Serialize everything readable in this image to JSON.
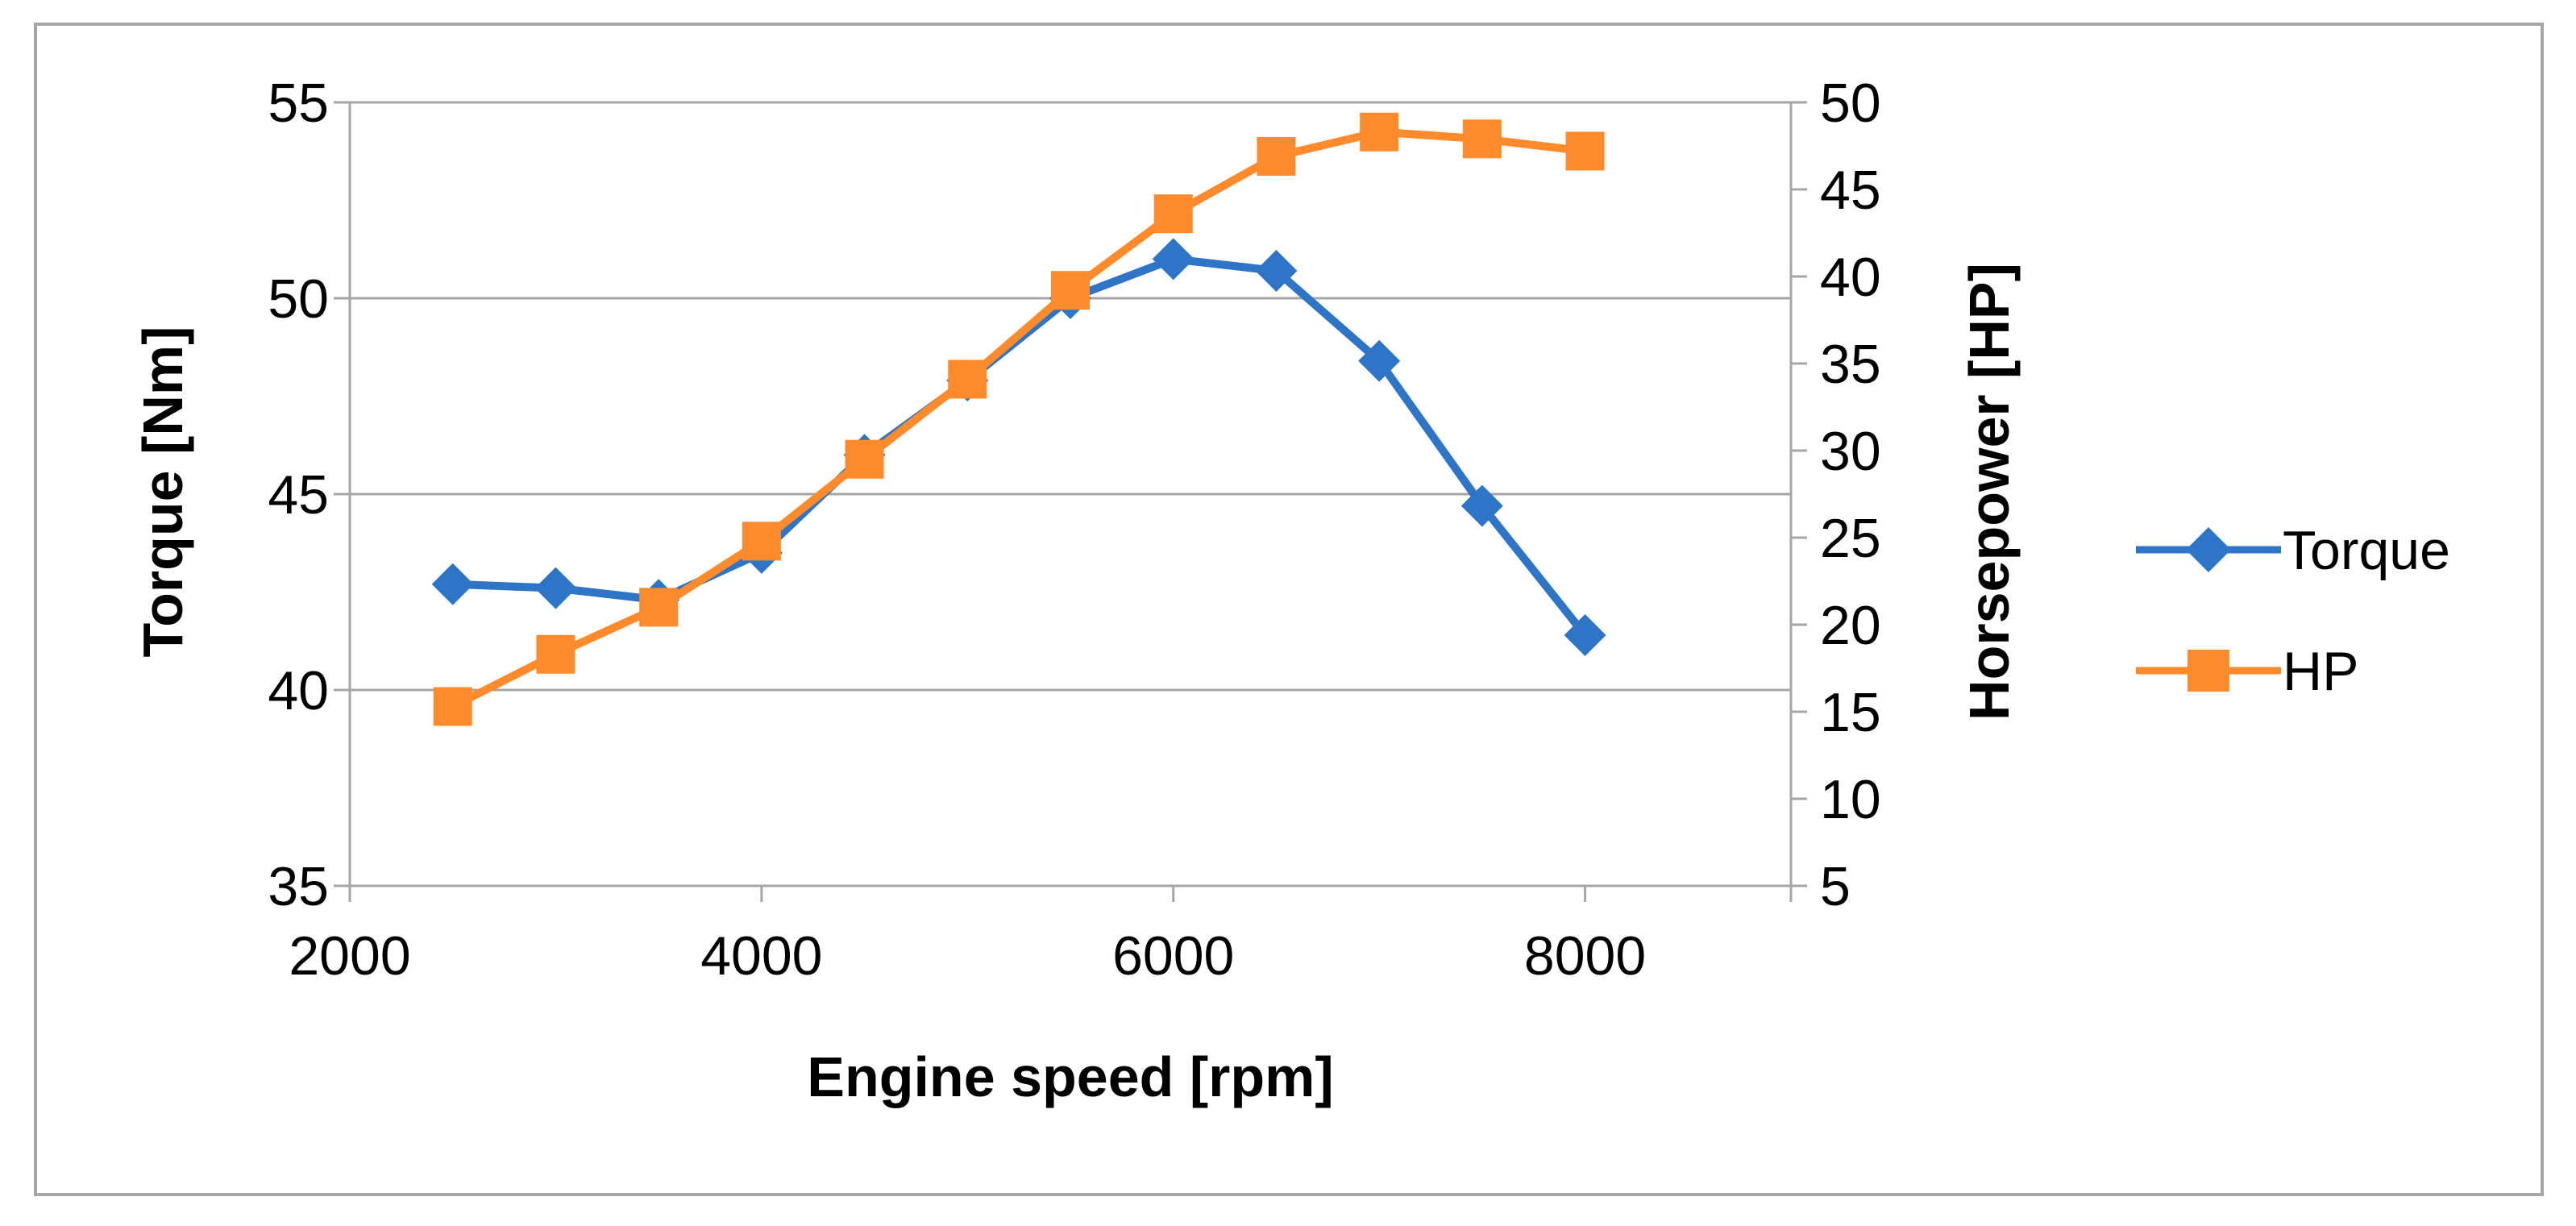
{
  "chart_data": {
    "type": "line",
    "title": "",
    "xlabel": "Engine speed [rpm]",
    "ylabel": "Torque [Nm]",
    "y2label": "Horsepower [HP]",
    "xlim": [
      2000,
      9000
    ],
    "ylim": [
      35,
      55
    ],
    "y2lim": [
      5,
      50
    ],
    "x_ticks": [
      2000,
      4000,
      6000,
      8000
    ],
    "y_ticks": [
      35,
      40,
      45,
      50,
      55
    ],
    "y2_ticks": [
      5,
      10,
      15,
      20,
      25,
      30,
      35,
      40,
      45,
      50
    ],
    "grid": "horizontal",
    "legend_position": "right",
    "x": [
      2500,
      3000,
      3500,
      4000,
      4500,
      5000,
      5500,
      6000,
      6500,
      7000,
      7500,
      8000
    ],
    "series": [
      {
        "name": "Torque",
        "axis": "left",
        "color": "#2e75c8",
        "marker": "diamond",
        "values": [
          42.7,
          42.6,
          42.3,
          43.5,
          46.0,
          47.9,
          50.0,
          51.0,
          50.7,
          48.4,
          44.7,
          41.4
        ]
      },
      {
        "name": "HP",
        "axis": "right",
        "color": "#ff8b2c",
        "marker": "square",
        "values": [
          15.3,
          18.3,
          21.0,
          24.8,
          29.5,
          34.1,
          39.2,
          43.6,
          46.9,
          48.3,
          47.9,
          47.2
        ]
      }
    ]
  }
}
